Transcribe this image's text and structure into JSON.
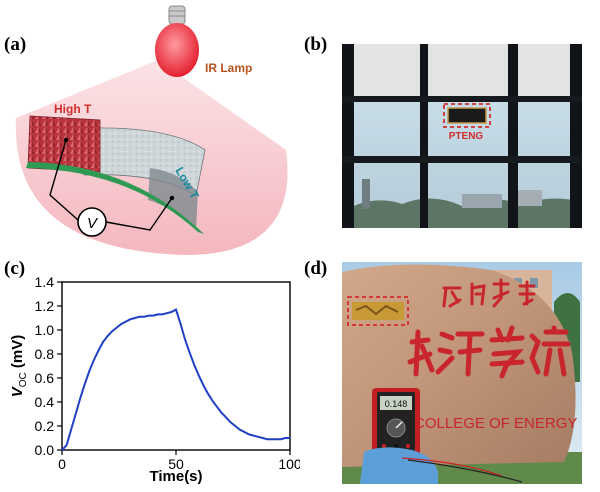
{
  "panels": {
    "a": {
      "label": "(a)",
      "ir_lamp": "IR Lamp",
      "high_t": "High T",
      "low_t": "Low T",
      "voltmeter": "V"
    },
    "b": {
      "label": "(b)",
      "device": "PTENG"
    },
    "c": {
      "label": "(c)"
    },
    "d": {
      "label": "(d)",
      "sign_text": "COLLEGE OF ENERGY",
      "meter_reading": "0.148"
    }
  },
  "colors": {
    "accent_red": "#d22c2c",
    "lamp_label": "#b8541e",
    "low_t_label": "#1a8aa0",
    "curve": "#1f3fc4"
  },
  "chart_data": {
    "type": "line",
    "title": "",
    "xlabel": "Time(s)",
    "ylabel": "V",
    "ylabel_sub": "OC",
    "ylabel_unit": "(mV)",
    "xlim": [
      0,
      100
    ],
    "ylim": [
      0,
      1.4
    ],
    "xticks": [
      0,
      50,
      100
    ],
    "yticks": [
      0.0,
      0.2,
      0.4,
      0.6,
      0.8,
      1.0,
      1.2,
      1.4
    ],
    "grid": false,
    "series": [
      {
        "name": "",
        "x": [
          0,
          2,
          4,
          6,
          8,
          10,
          12,
          14,
          16,
          18,
          20,
          22,
          24,
          26,
          28,
          30,
          32,
          34,
          36,
          38,
          40,
          42,
          44,
          46,
          48,
          50,
          52,
          54,
          56,
          58,
          60,
          62,
          64,
          66,
          68,
          70,
          72,
          74,
          76,
          78,
          80,
          82,
          84,
          86,
          88,
          90,
          92,
          94,
          96,
          98,
          100
        ],
        "y": [
          0.0,
          0.04,
          0.17,
          0.3,
          0.43,
          0.55,
          0.66,
          0.75,
          0.83,
          0.9,
          0.95,
          0.99,
          1.02,
          1.05,
          1.07,
          1.09,
          1.1,
          1.11,
          1.11,
          1.12,
          1.12,
          1.13,
          1.13,
          1.14,
          1.15,
          1.17,
          1.05,
          0.92,
          0.81,
          0.71,
          0.62,
          0.54,
          0.47,
          0.41,
          0.36,
          0.31,
          0.27,
          0.23,
          0.2,
          0.17,
          0.15,
          0.13,
          0.12,
          0.11,
          0.1,
          0.09,
          0.09,
          0.09,
          0.09,
          0.1,
          0.1
        ]
      }
    ]
  }
}
